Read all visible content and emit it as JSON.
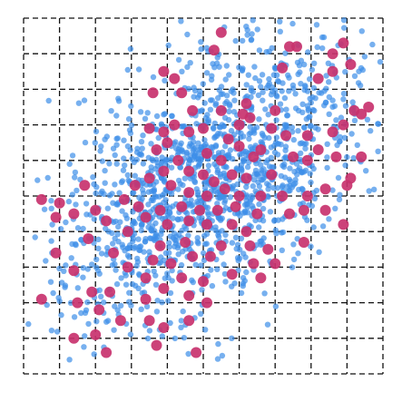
{
  "chart_data": {
    "type": "scatter",
    "title": "",
    "xlabel": "",
    "ylabel": "",
    "xlim": [
      0,
      10
    ],
    "ylim": [
      0,
      10
    ],
    "grid": true,
    "grid_style": "dashed",
    "axis_ticks_shown": false,
    "series": [
      {
        "role": "background-cloud",
        "color": "#3d8fe8",
        "marker": "small-circle",
        "generator": {
          "kind": "correlated-gaussian",
          "count": 1400,
          "mean": [
            5.2,
            5.6
          ],
          "std": [
            2.1,
            2.0
          ],
          "correlation": 0.55,
          "seed": 7
        }
      },
      {
        "role": "highlighted",
        "color": "#c8326e",
        "marker": "large-circle",
        "points": [
          [
            5.5,
            9.6
          ],
          [
            5.3,
            9.1
          ],
          [
            7.4,
            9.2
          ],
          [
            7.6,
            9.2
          ],
          [
            8.9,
            9.3
          ],
          [
            8.6,
            9.0
          ],
          [
            9.1,
            8.7
          ],
          [
            7.2,
            8.6
          ],
          [
            8.6,
            8.5
          ],
          [
            8.2,
            8.3
          ],
          [
            3.9,
            8.5
          ],
          [
            4.2,
            8.3
          ],
          [
            3.6,
            7.9
          ],
          [
            4.4,
            7.9
          ],
          [
            4.7,
            7.4
          ],
          [
            5.5,
            7.4
          ],
          [
            6.1,
            7.3
          ],
          [
            6.2,
            7.6
          ],
          [
            6.3,
            7.2
          ],
          [
            7.0,
            7.4
          ],
          [
            9.2,
            7.4
          ],
          [
            9.6,
            7.5
          ],
          [
            9.4,
            7.3
          ],
          [
            4.2,
            7.0
          ],
          [
            4.6,
            6.8
          ],
          [
            5.0,
            6.9
          ],
          [
            5.7,
            6.6
          ],
          [
            6.0,
            7.0
          ],
          [
            6.9,
            6.9
          ],
          [
            7.3,
            6.7
          ],
          [
            7.9,
            6.7
          ],
          [
            8.6,
            6.8
          ],
          [
            8.9,
            7.0
          ],
          [
            3.5,
            6.9
          ],
          [
            3.9,
            6.8
          ],
          [
            4.0,
            6.5
          ],
          [
            3.7,
            6.3
          ],
          [
            4.3,
            6.0
          ],
          [
            5.1,
            6.2
          ],
          [
            5.5,
            6.0
          ],
          [
            6.0,
            6.4
          ],
          [
            6.4,
            6.1
          ],
          [
            6.6,
            6.3
          ],
          [
            7.5,
            6.1
          ],
          [
            7.9,
            6.0
          ],
          [
            8.2,
            6.3
          ],
          [
            8.7,
            6.1
          ],
          [
            9.4,
            6.1
          ],
          [
            3.9,
            5.7
          ],
          [
            4.6,
            5.7
          ],
          [
            5.0,
            5.6
          ],
          [
            5.3,
            5.4
          ],
          [
            5.8,
            5.6
          ],
          [
            6.2,
            5.5
          ],
          [
            6.9,
            5.6
          ],
          [
            8.4,
            5.2
          ],
          [
            9.1,
            5.5
          ],
          [
            9.0,
            5.3
          ],
          [
            1.7,
            5.3
          ],
          [
            3.1,
            5.3
          ],
          [
            3.5,
            5.5
          ],
          [
            4.1,
            5.3
          ],
          [
            4.6,
            5.1
          ],
          [
            5.1,
            5.0
          ],
          [
            5.6,
            5.2
          ],
          [
            6.0,
            5.0
          ],
          [
            6.6,
            5.0
          ],
          [
            7.2,
            5.0
          ],
          [
            7.9,
            5.0
          ],
          [
            0.5,
            4.9
          ],
          [
            1.0,
            4.8
          ],
          [
            2.0,
            4.6
          ],
          [
            2.8,
            4.9
          ],
          [
            3.2,
            4.7
          ],
          [
            3.8,
            4.6
          ],
          [
            4.4,
            4.7
          ],
          [
            4.9,
            4.6
          ],
          [
            5.4,
            4.6
          ],
          [
            5.9,
            4.7
          ],
          [
            6.5,
            4.5
          ],
          [
            7.4,
            4.5
          ],
          [
            7.8,
            4.6
          ],
          [
            8.4,
            4.6
          ],
          [
            0.9,
            4.4
          ],
          [
            1.4,
            4.5
          ],
          [
            2.3,
            4.3
          ],
          [
            3.4,
            4.4
          ],
          [
            4.0,
            4.2
          ],
          [
            4.6,
            4.3
          ],
          [
            5.1,
            4.2
          ],
          [
            5.8,
            4.2
          ],
          [
            6.2,
            4.0
          ],
          [
            8.9,
            4.2
          ],
          [
            1.8,
            3.8
          ],
          [
            2.9,
            4.0
          ],
          [
            3.8,
            3.6
          ],
          [
            4.5,
            3.7
          ],
          [
            5.5,
            3.6
          ],
          [
            6.3,
            3.6
          ],
          [
            6.8,
            3.5
          ],
          [
            7.8,
            3.7
          ],
          [
            0.9,
            3.4
          ],
          [
            2.5,
            3.4
          ],
          [
            3.6,
            3.2
          ],
          [
            4.1,
            3.1
          ],
          [
            4.7,
            3.3
          ],
          [
            5.2,
            3.3
          ],
          [
            6.4,
            3.1
          ],
          [
            7.0,
            3.1
          ],
          [
            1.4,
            2.9
          ],
          [
            2.9,
            3.0
          ],
          [
            3.4,
            2.7
          ],
          [
            4.4,
            2.7
          ],
          [
            5.0,
            2.6
          ],
          [
            5.8,
            2.8
          ],
          [
            6.6,
            2.7
          ],
          [
            1.9,
            2.3
          ],
          [
            2.4,
            2.3
          ],
          [
            3.4,
            2.1
          ],
          [
            3.9,
            2.4
          ],
          [
            4.6,
            2.2
          ],
          [
            5.1,
            2.0
          ],
          [
            0.5,
            2.1
          ],
          [
            1.5,
            2.0
          ],
          [
            2.1,
            1.8
          ],
          [
            2.7,
            1.5
          ],
          [
            3.5,
            1.5
          ],
          [
            3.9,
            1.3
          ],
          [
            4.6,
            1.5
          ],
          [
            2.0,
            1.1
          ],
          [
            3.7,
            0.8
          ],
          [
            4.8,
            0.6
          ],
          [
            1.4,
            1.0
          ],
          [
            2.3,
            0.6
          ]
        ]
      }
    ]
  }
}
